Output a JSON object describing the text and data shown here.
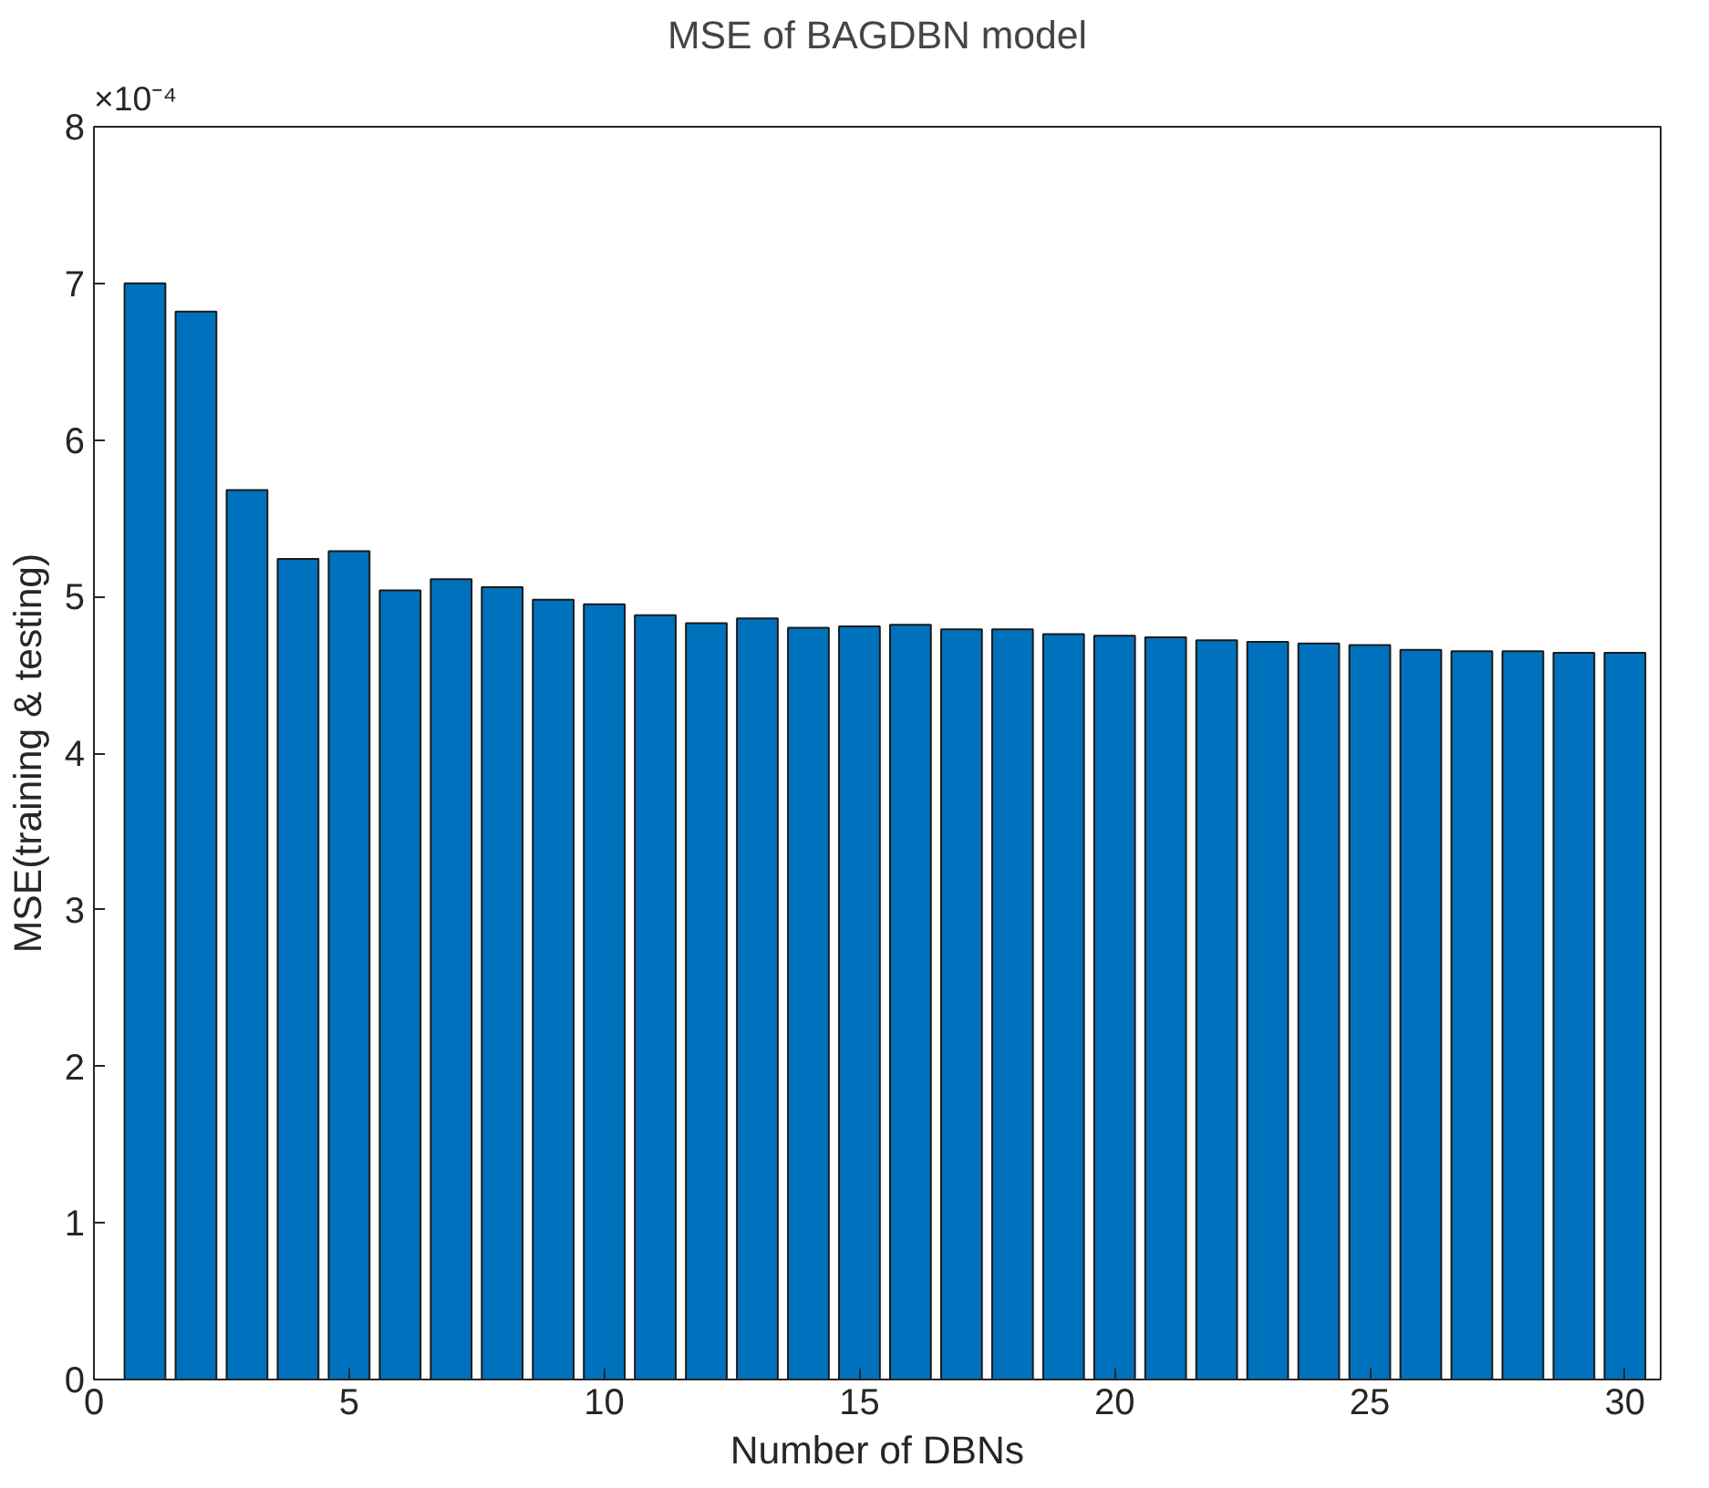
{
  "chart_data": {
    "type": "bar",
    "title": "MSE of BAGDBN model",
    "xlabel": "Number of DBNs",
    "ylabel": "MSE(training & testing)",
    "annotations": [
      "×10⁻⁴"
    ],
    "x": [
      1,
      2,
      3,
      4,
      5,
      6,
      7,
      8,
      9,
      10,
      11,
      12,
      13,
      14,
      15,
      16,
      17,
      18,
      19,
      20,
      21,
      22,
      23,
      24,
      25,
      26,
      27,
      28,
      29,
      30
    ],
    "values": [
      7.0,
      6.82,
      5.68,
      5.24,
      5.29,
      5.04,
      5.11,
      5.06,
      4.98,
      4.95,
      4.88,
      4.83,
      4.86,
      4.8,
      4.81,
      4.82,
      4.79,
      4.79,
      4.76,
      4.75,
      4.74,
      4.72,
      4.71,
      4.7,
      4.69,
      4.66,
      4.65,
      4.65,
      4.64,
      4.64
    ],
    "color": "#0072bd",
    "xlim": [
      0,
      30.7
    ],
    "xticks": [
      0,
      5,
      10,
      15,
      20,
      25,
      30
    ],
    "ylim": [
      0,
      8
    ],
    "yticks": [
      0,
      1,
      2,
      3,
      4,
      5,
      6,
      7,
      8
    ],
    "grid": false
  }
}
